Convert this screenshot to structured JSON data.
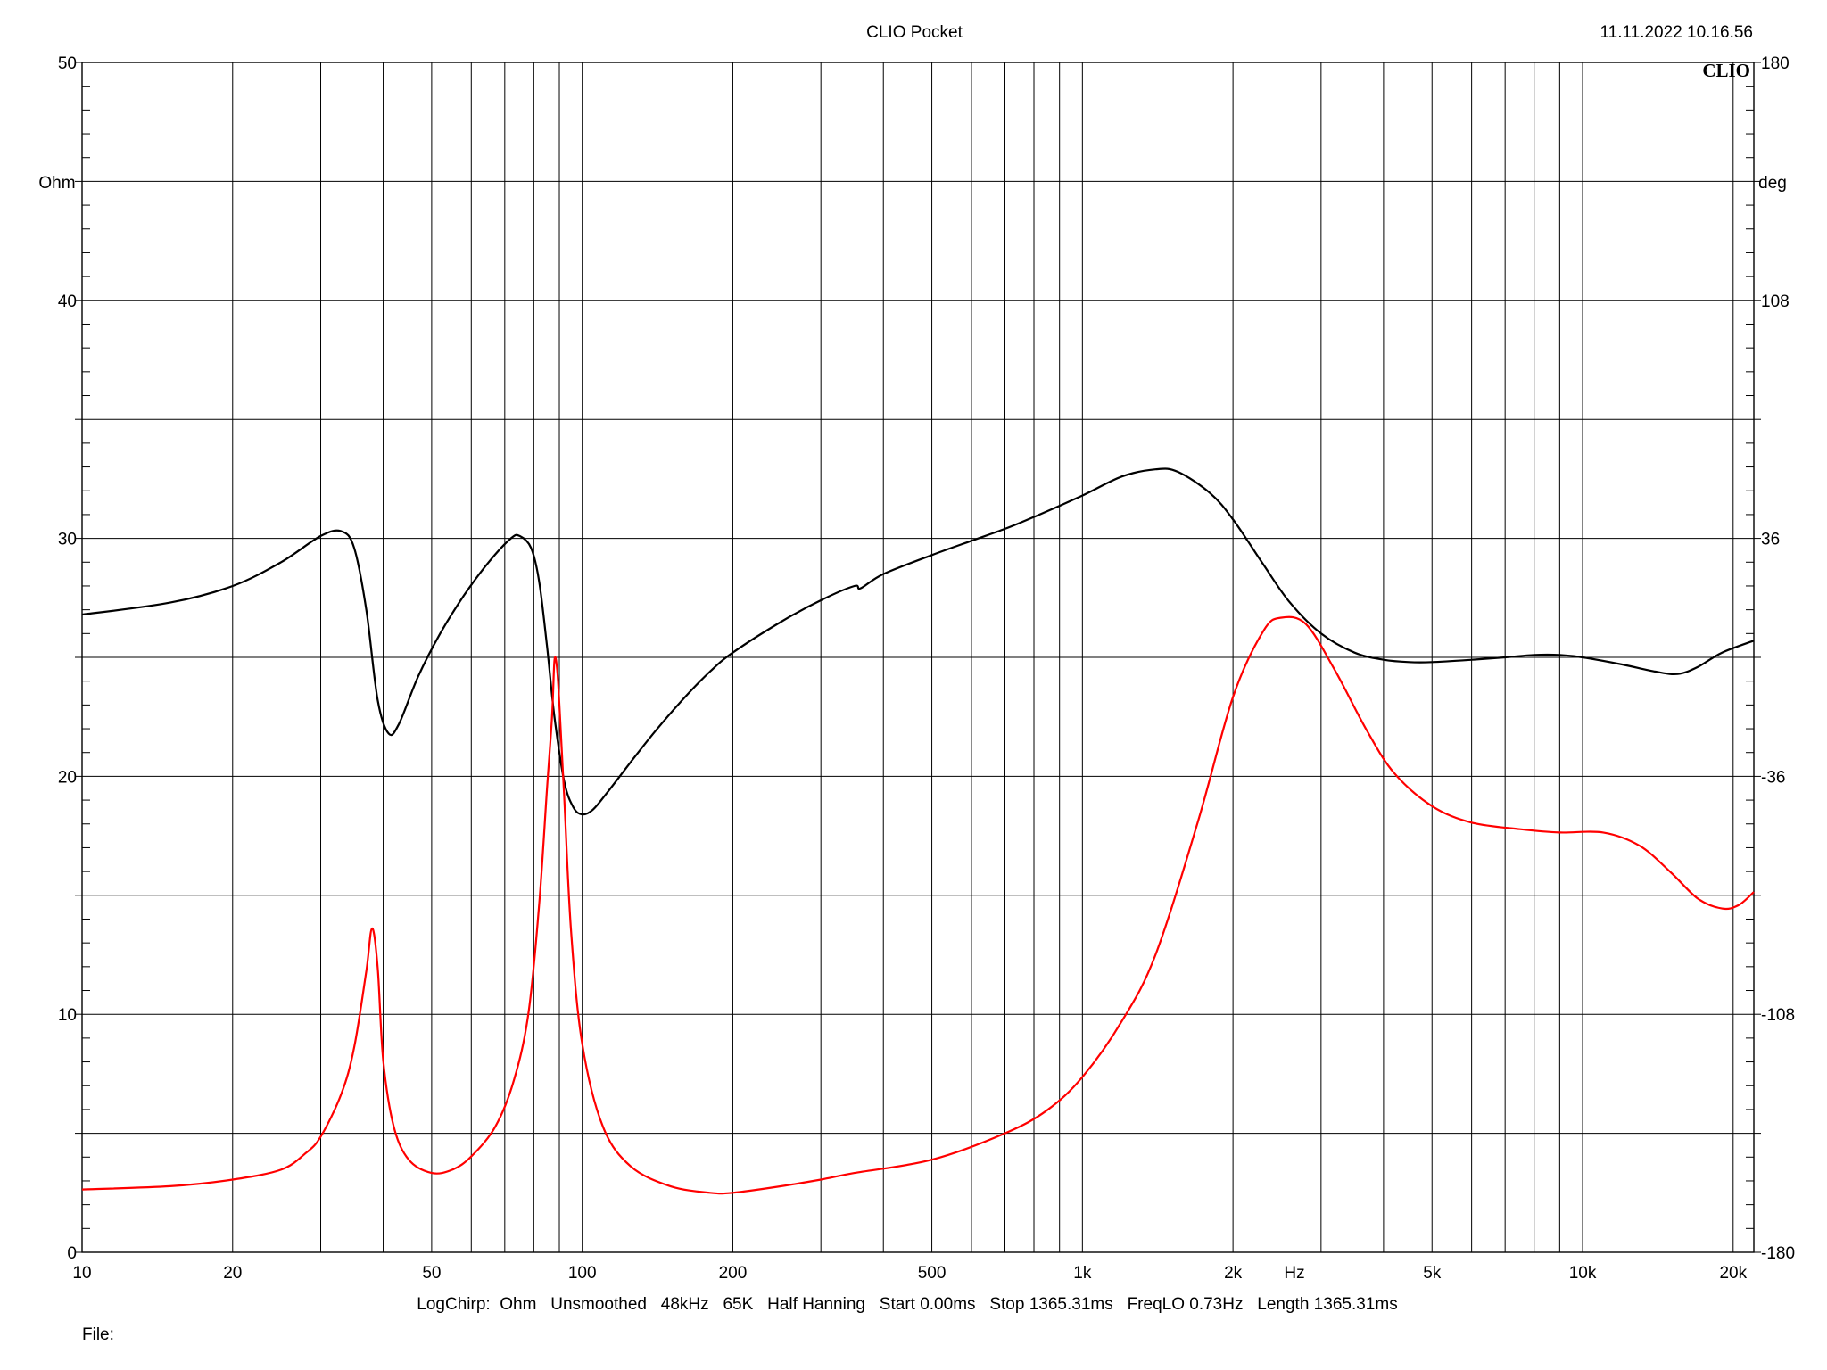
{
  "header": {
    "title": "CLIO Pocket",
    "timestamp": "11.11.2022 10.16.56",
    "brand": "CLIO"
  },
  "footer": {
    "settings": "LogChirp:  Ohm   Unsmoothed   48kHz   65K   Half Hanning   Start 0.00ms   Stop 1365.31ms   FreqLO 0.73Hz   Length 1365.31ms",
    "file_label": "File:"
  },
  "chart_data": {
    "type": "line",
    "xlabel": "Hz",
    "ylabel": "Ohm",
    "y2label": "deg",
    "xscale": "log",
    "xlim": [
      10,
      22000
    ],
    "ylim": [
      0,
      50
    ],
    "y2lim": [
      -180,
      180
    ],
    "grid": true,
    "x_ticks": [
      {
        "value": 10,
        "label": "10"
      },
      {
        "value": 20,
        "label": "20"
      },
      {
        "value": 50,
        "label": "50"
      },
      {
        "value": 100,
        "label": "100"
      },
      {
        "value": 200,
        "label": "200"
      },
      {
        "value": 500,
        "label": "500"
      },
      {
        "value": 1000,
        "label": "1k"
      },
      {
        "value": 2000,
        "label": "2k"
      },
      {
        "value": 5000,
        "label": "5k"
      },
      {
        "value": 10000,
        "label": "10k"
      },
      {
        "value": 20000,
        "label": "20k"
      }
    ],
    "y_ticks": [
      {
        "value": 0,
        "label": "0"
      },
      {
        "value": 10,
        "label": "10"
      },
      {
        "value": 20,
        "label": "20"
      },
      {
        "value": 30,
        "label": "30"
      },
      {
        "value": 40,
        "label": "40"
      },
      {
        "value": 50,
        "label": "50"
      }
    ],
    "y2_ticks": [
      {
        "value": -180,
        "label": "-180"
      },
      {
        "value": -108,
        "label": "-108"
      },
      {
        "value": -36,
        "label": "-36"
      },
      {
        "value": 36,
        "label": "36"
      },
      {
        "value": 108,
        "label": "108"
      },
      {
        "value": 180,
        "label": "180"
      }
    ],
    "series": [
      {
        "color": "#000000",
        "axis": "left",
        "points": [
          [
            10,
            26.8
          ],
          [
            15,
            27.3
          ],
          [
            20,
            28.0
          ],
          [
            25,
            29.0
          ],
          [
            30,
            30.1
          ],
          [
            33,
            30.3
          ],
          [
            35,
            29.6
          ],
          [
            37,
            27.0
          ],
          [
            39,
            23.2
          ],
          [
            41,
            21.8
          ],
          [
            43,
            22.2
          ],
          [
            47,
            24.2
          ],
          [
            52,
            26.0
          ],
          [
            58,
            27.6
          ],
          [
            65,
            29.0
          ],
          [
            72,
            30.0
          ],
          [
            75,
            30.1
          ],
          [
            79,
            29.6
          ],
          [
            82,
            28.2
          ],
          [
            85,
            25.5
          ],
          [
            88,
            22.5
          ],
          [
            92,
            19.8
          ],
          [
            96,
            18.7
          ],
          [
            100,
            18.4
          ],
          [
            105,
            18.6
          ],
          [
            112,
            19.3
          ],
          [
            125,
            20.6
          ],
          [
            140,
            21.9
          ],
          [
            160,
            23.3
          ],
          [
            180,
            24.4
          ],
          [
            200,
            25.2
          ],
          [
            250,
            26.5
          ],
          [
            300,
            27.4
          ],
          [
            350,
            28.0
          ],
          [
            360,
            27.9
          ],
          [
            400,
            28.5
          ],
          [
            500,
            29.3
          ],
          [
            600,
            29.9
          ],
          [
            700,
            30.4
          ],
          [
            800,
            30.9
          ],
          [
            1000,
            31.8
          ],
          [
            1200,
            32.6
          ],
          [
            1400,
            32.9
          ],
          [
            1550,
            32.8
          ],
          [
            1800,
            31.9
          ],
          [
            2000,
            30.8
          ],
          [
            2300,
            28.9
          ],
          [
            2600,
            27.3
          ],
          [
            3000,
            26.0
          ],
          [
            3500,
            25.2
          ],
          [
            4000,
            24.9
          ],
          [
            4500,
            24.8
          ],
          [
            5000,
            24.8
          ],
          [
            6000,
            24.9
          ],
          [
            7000,
            25.0
          ],
          [
            8000,
            25.1
          ],
          [
            9000,
            25.1
          ],
          [
            10000,
            25.0
          ],
          [
            12000,
            24.7
          ],
          [
            14000,
            24.4
          ],
          [
            15500,
            24.3
          ],
          [
            17000,
            24.6
          ],
          [
            19000,
            25.2
          ],
          [
            22000,
            25.7
          ]
        ]
      },
      {
        "color": "#ff0000",
        "axis": "right",
        "points": [
          [
            10,
            -161
          ],
          [
            15,
            -160
          ],
          [
            20,
            -158
          ],
          [
            25,
            -155
          ],
          [
            28,
            -150
          ],
          [
            30,
            -145
          ],
          [
            33,
            -132
          ],
          [
            35,
            -118
          ],
          [
            37,
            -95
          ],
          [
            38,
            -82
          ],
          [
            39,
            -94
          ],
          [
            40,
            -122
          ],
          [
            42,
            -142
          ],
          [
            45,
            -152
          ],
          [
            50,
            -156
          ],
          [
            55,
            -155
          ],
          [
            60,
            -151
          ],
          [
            67,
            -142
          ],
          [
            73,
            -128
          ],
          [
            78,
            -108
          ],
          [
            82,
            -75
          ],
          [
            85,
            -40
          ],
          [
            87,
            -18
          ],
          [
            88,
            -1
          ],
          [
            89,
            -3
          ],
          [
            90,
            -14
          ],
          [
            92,
            -42
          ],
          [
            95,
            -83
          ],
          [
            100,
            -117
          ],
          [
            110,
            -142
          ],
          [
            125,
            -154
          ],
          [
            150,
            -160
          ],
          [
            180,
            -162
          ],
          [
            200,
            -162
          ],
          [
            250,
            -160
          ],
          [
            300,
            -158
          ],
          [
            350,
            -156
          ],
          [
            500,
            -152
          ],
          [
            700,
            -144
          ],
          [
            850,
            -137
          ],
          [
            1000,
            -127
          ],
          [
            1200,
            -110
          ],
          [
            1400,
            -90
          ],
          [
            1700,
            -50
          ],
          [
            2000,
            -12
          ],
          [
            2300,
            8
          ],
          [
            2500,
            12
          ],
          [
            2800,
            10
          ],
          [
            3200,
            -4
          ],
          [
            3700,
            -22
          ],
          [
            4200,
            -35
          ],
          [
            5000,
            -45
          ],
          [
            6000,
            -50
          ],
          [
            7500,
            -52
          ],
          [
            9000,
            -53
          ],
          [
            11000,
            -53
          ],
          [
            13000,
            -57
          ],
          [
            15000,
            -65
          ],
          [
            17000,
            -73
          ],
          [
            19000,
            -76
          ],
          [
            20500,
            -75
          ],
          [
            22000,
            -71
          ]
        ]
      }
    ]
  }
}
